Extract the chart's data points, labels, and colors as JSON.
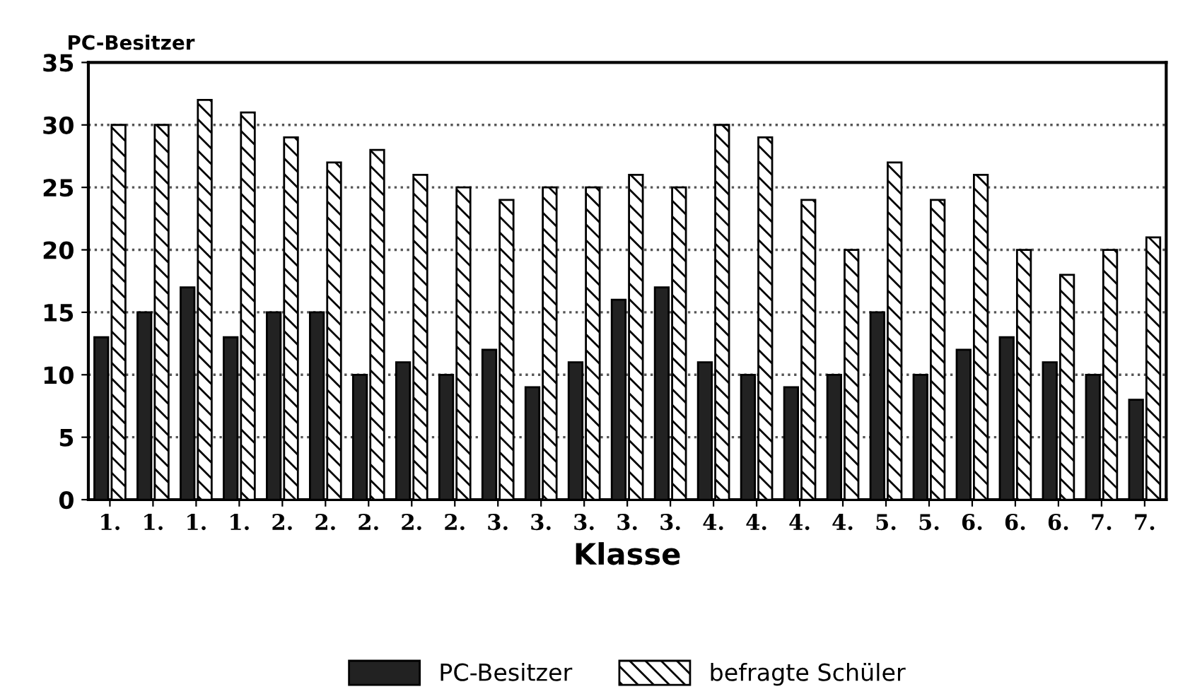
{
  "chart_data": {
    "type": "bar",
    "ylabel": "PC-Besitzer",
    "xlabel": "Klasse",
    "categories": [
      "1.",
      "1.",
      "1.",
      "1.",
      "2.",
      "2.",
      "2.",
      "2.",
      "2.",
      "3.",
      "3.",
      "3.",
      "3.",
      "3.",
      "4.",
      "4.",
      "4.",
      "4.",
      "5.",
      "5.",
      "6.",
      "6.",
      "6.",
      "7.",
      "7."
    ],
    "series": [
      {
        "name": "PC-Besitzer",
        "color": "#222222",
        "values": [
          13,
          15,
          17,
          13,
          15,
          15,
          10,
          11,
          10,
          12,
          9,
          11,
          16,
          17,
          11,
          10,
          9,
          10,
          15,
          10,
          12,
          13,
          11,
          10,
          8
        ]
      },
      {
        "name": "befragte Schüler",
        "color": "#000000",
        "values": [
          30,
          30,
          32,
          31,
          29,
          27,
          28,
          26,
          25,
          24,
          25,
          25,
          26,
          25,
          30,
          29,
          24,
          20,
          27,
          24,
          26,
          20,
          18,
          20,
          21
        ]
      }
    ],
    "ylim": [
      0,
      35
    ],
    "yticks": [
      0,
      5,
      10,
      15,
      20,
      25,
      30,
      35
    ],
    "grid": "y",
    "legend": "bottom"
  }
}
